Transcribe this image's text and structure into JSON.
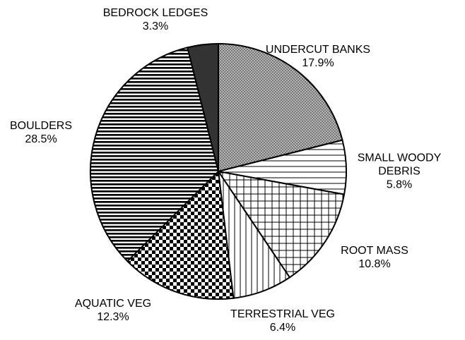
{
  "chart_data": {
    "type": "pie",
    "categories": [
      "UNDERCUT BANKS",
      "SMALL WOODY DEBRIS",
      "ROOT MASS",
      "TERRESTRIAL VEG",
      "AQUATIC VEG",
      "BOULDERS",
      "BEDROCK LEDGES"
    ],
    "values": [
      17.9,
      5.8,
      10.8,
      6.4,
      12.3,
      28.5,
      3.3
    ],
    "value_labels": [
      "17.9%",
      "5.8%",
      "10.8%",
      "6.4%",
      "12.3%",
      "28.5%",
      "3.3%"
    ],
    "patterns": [
      "crosshatch",
      "hlines",
      "grid",
      "vlines",
      "checker",
      "hlines-dense",
      "solid"
    ],
    "colors": [
      "#9a9a9a",
      "#000000",
      "#000000",
      "#000000",
      "#000000",
      "#000000",
      "#333333"
    ]
  }
}
